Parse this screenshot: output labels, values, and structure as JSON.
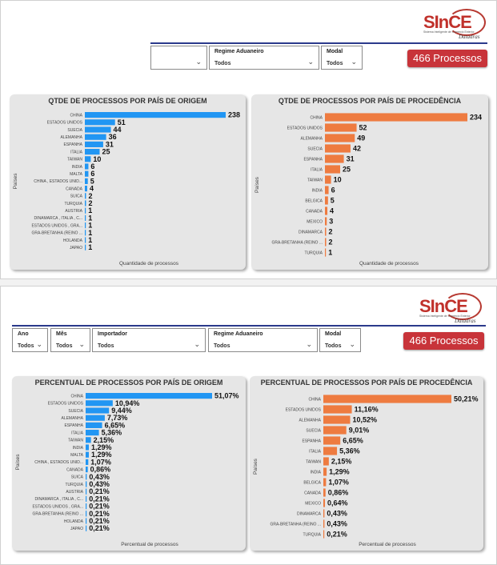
{
  "logo": {
    "name": "SInCE",
    "tagline": "Sistema Inteligente de Comércio Exterior",
    "brand": "Datadras"
  },
  "top_panel": {
    "filters": [
      {
        "label": "",
        "value": ""
      },
      {
        "label": "Regime Aduaneiro",
        "value": "Todos"
      },
      {
        "label": "Modal",
        "value": "Todos"
      }
    ],
    "badge": "466 Processos"
  },
  "bottom_panel": {
    "filters": [
      {
        "label": "Ano",
        "value": "Todos"
      },
      {
        "label": "Mês",
        "value": "Todos"
      },
      {
        "label": "Importador",
        "value": "Todos"
      },
      {
        "label": "Regime Aduaneiro",
        "value": "Todos"
      },
      {
        "label": "Modal",
        "value": "Todos"
      }
    ],
    "badge": "466 Processos"
  },
  "colors": {
    "blue": "#2196f3",
    "orange": "#ee7b40",
    "badge": "#c8343a",
    "navline": "#2b3a8c"
  },
  "chart_data": [
    {
      "type": "bar",
      "title": "QTDE DE PROCESSOS POR PAÍS DE ORIGEM",
      "xlabel": "Quantidade de processos",
      "ylabel": "Países",
      "categories": [
        "CHINA",
        "ESTADOS UNIDOS",
        "SUECIA",
        "ALEMANHA",
        "ESPANHA",
        "ITALIA",
        "TAIWAN",
        "INDIA",
        "MALTA",
        "CHINA , ESTADOS UNID...",
        "CANADA",
        "SUICA",
        "TURQUIA",
        "AUSTRIA",
        "DINAMARCA , ITALIA , C...",
        "ESTADOS UNIDOS , GRA...",
        "GRA-BRETANHA (REINO ...",
        "HOLANDA",
        "JAPAO"
      ],
      "values": [
        238,
        51,
        44,
        36,
        31,
        25,
        10,
        6,
        6,
        5,
        4,
        2,
        2,
        1,
        1,
        1,
        1,
        1,
        1
      ],
      "labels": [
        "238",
        "51",
        "44",
        "36",
        "31",
        "25",
        "10",
        "6",
        "6",
        "5",
        "4",
        "2",
        "2",
        "1",
        "1",
        "1",
        "1",
        "1",
        "1"
      ],
      "color": "#2196f3"
    },
    {
      "type": "bar",
      "title": "QTDE DE PROCESSOS POR PAÍS DE PROCEDÊNCIA",
      "xlabel": "Quantidade de processos",
      "ylabel": "Países",
      "categories": [
        "CHINA",
        "ESTADOS UNIDOS",
        "ALEMANHA",
        "SUECIA",
        "ESPANHA",
        "ITALIA",
        "TAIWAN",
        "INDIA",
        "BELGICA",
        "CANADA",
        "MEXICO",
        "DINAMARCA",
        "GRA-BRETANHA (REINO ...",
        "TURQUIA"
      ],
      "values": [
        234,
        52,
        49,
        42,
        31,
        25,
        10,
        6,
        5,
        4,
        3,
        2,
        2,
        1
      ],
      "labels": [
        "234",
        "52",
        "49",
        "42",
        "31",
        "25",
        "10",
        "6",
        "5",
        "4",
        "3",
        "2",
        "2",
        "1"
      ],
      "color": "#ee7b40"
    },
    {
      "type": "bar",
      "title": "PERCENTUAL DE PROCESSOS POR PAÍS DE ORIGEM",
      "xlabel": "Percentual de processos",
      "ylabel": "Países",
      "categories": [
        "CHINA",
        "ESTADOS UNIDOS",
        "SUECIA",
        "ALEMANHA",
        "ESPANHA",
        "ITALIA",
        "TAIWAN",
        "INDIA",
        "MALTA",
        "CHINA , ESTADOS UNID...",
        "CANADA",
        "SUICA",
        "TURQUIA",
        "AUSTRIA",
        "DINAMARCA , ITALIA , C...",
        "ESTADOS UNIDOS , GRA...",
        "GRA-BRETANHA (REINO ...",
        "HOLANDA",
        "JAPAO"
      ],
      "values": [
        51.07,
        10.94,
        9.44,
        7.73,
        6.65,
        5.36,
        2.15,
        1.29,
        1.29,
        1.07,
        0.86,
        0.43,
        0.43,
        0.21,
        0.21,
        0.21,
        0.21,
        0.21,
        0.21
      ],
      "labels": [
        "51,07%",
        "10,94%",
        "9,44%",
        "7,73%",
        "6,65%",
        "5,36%",
        "2,15%",
        "1,29%",
        "1,29%",
        "1,07%",
        "0,86%",
        "0,43%",
        "0,43%",
        "0,21%",
        "0,21%",
        "0,21%",
        "0,21%",
        "0,21%",
        "0,21%"
      ],
      "color": "#2196f3"
    },
    {
      "type": "bar",
      "title": "PERCENTUAL DE PROCESSOS POR PAÍS DE PROCEDÊNCIA",
      "xlabel": "Percentual de processos",
      "ylabel": "Países",
      "categories": [
        "CHINA",
        "ESTADOS UNIDOS",
        "ALEMANHA",
        "SUECIA",
        "ESPANHA",
        "ITALIA",
        "TAIWAN",
        "INDIA",
        "BELGICA",
        "CANADA",
        "MEXICO",
        "DINAMARCA",
        "GRA-BRETANHA (REINO ...",
        "TURQUIA"
      ],
      "values": [
        50.21,
        11.16,
        10.52,
        9.01,
        6.65,
        5.36,
        2.15,
        1.29,
        1.07,
        0.86,
        0.64,
        0.43,
        0.43,
        0.21
      ],
      "labels": [
        "50,21%",
        "11,16%",
        "10,52%",
        "9,01%",
        "6,65%",
        "5,36%",
        "2,15%",
        "1,29%",
        "1,07%",
        "0,86%",
        "0,64%",
        "0,43%",
        "0,43%",
        "0,21%"
      ],
      "color": "#ee7b40"
    }
  ]
}
